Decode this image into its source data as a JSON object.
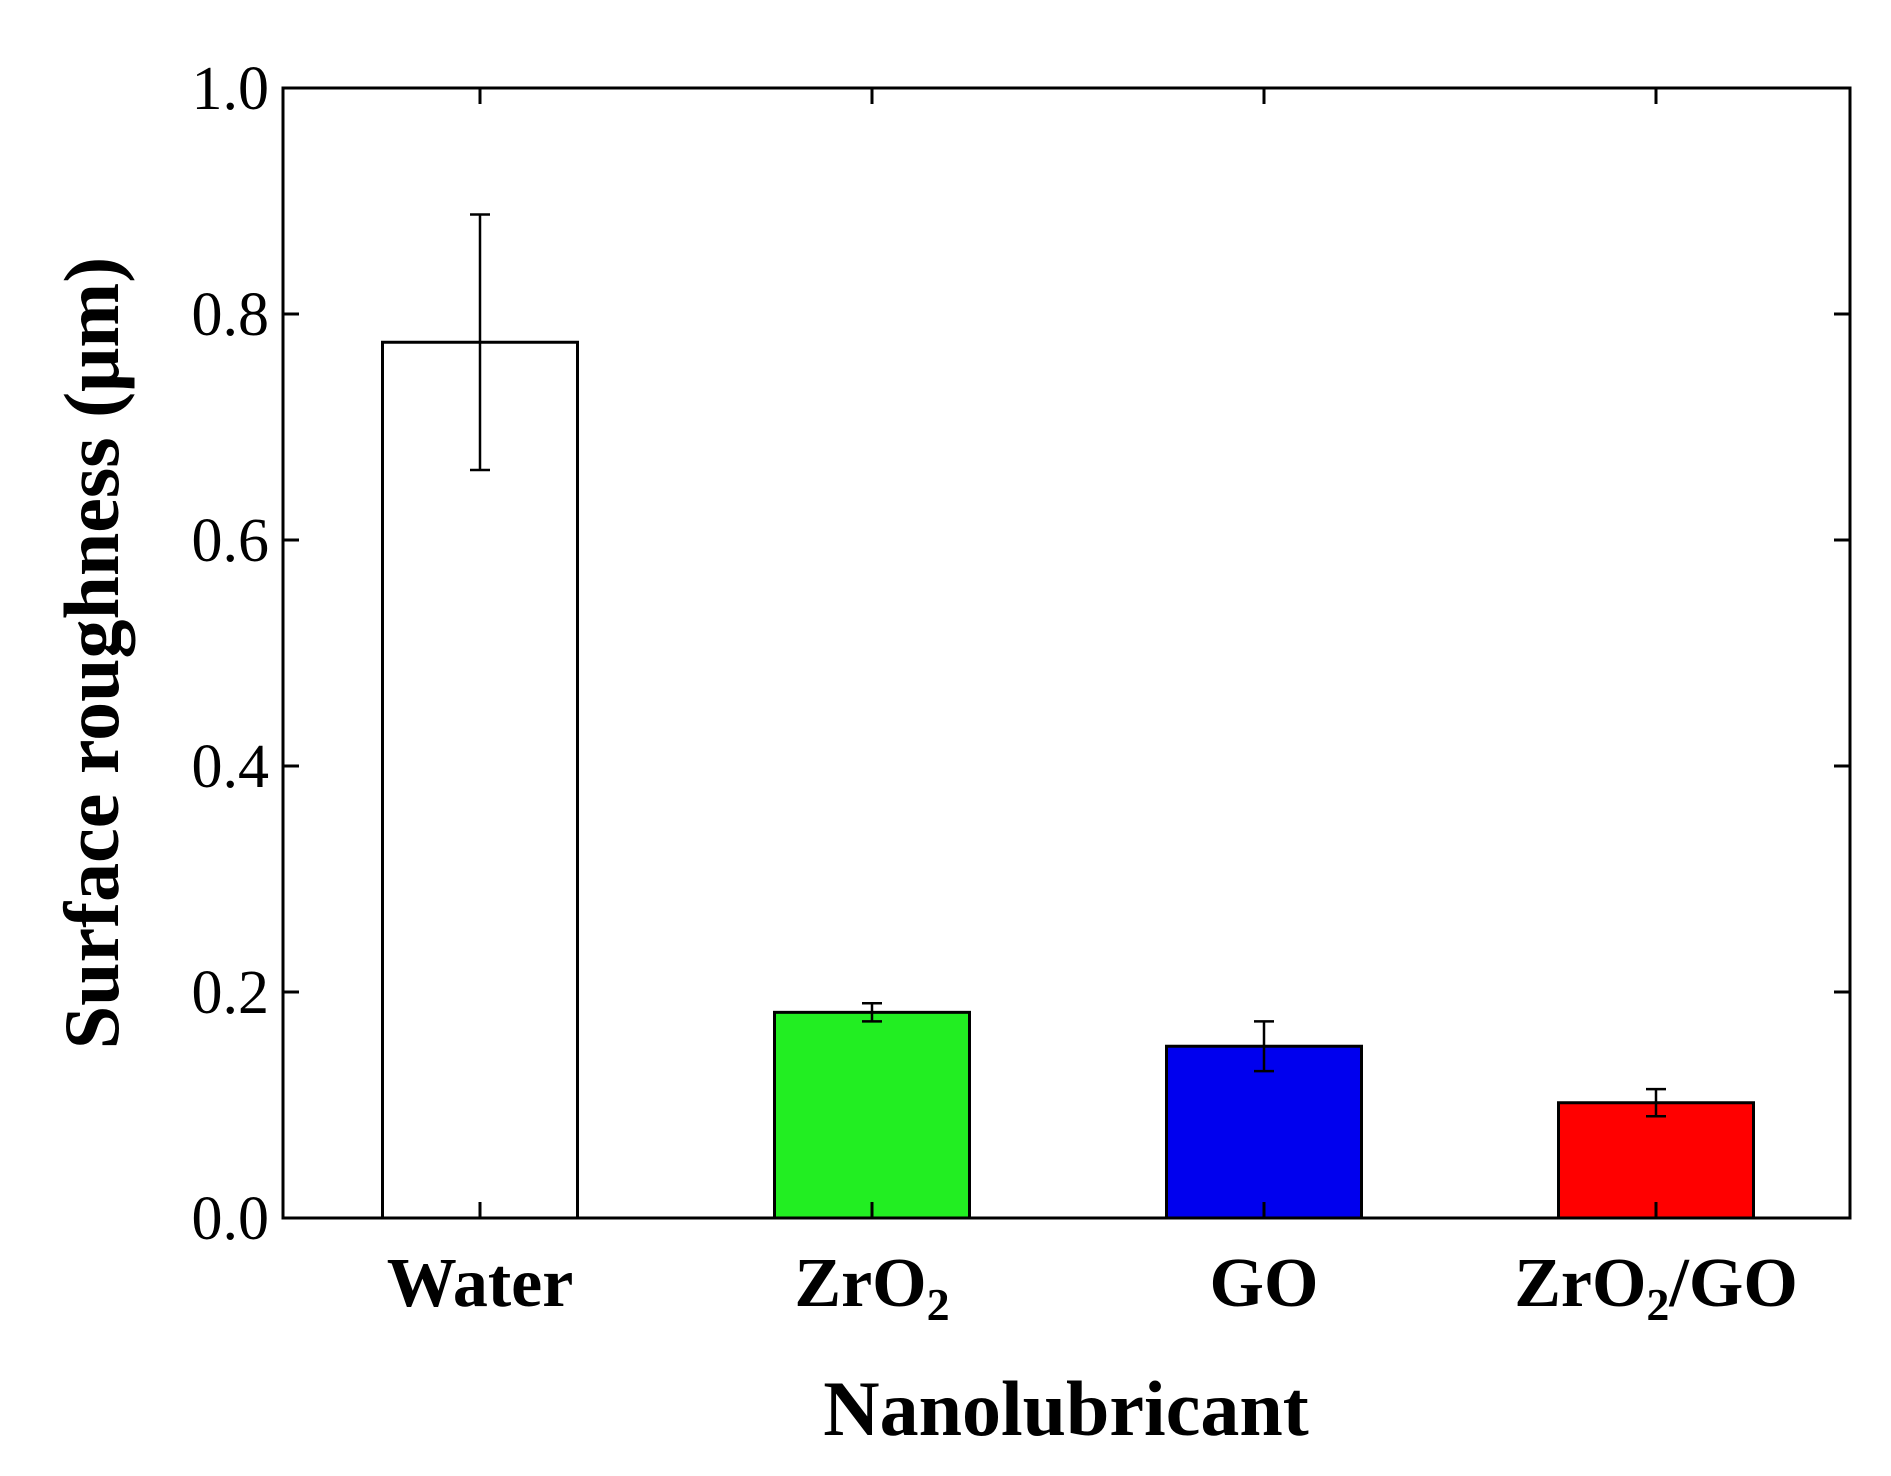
{
  "chart_data": {
    "type": "bar",
    "title": "",
    "xlabel": "Nanolubricant",
    "ylabel": "Surface roughness (μm)",
    "ylim": [
      0.0,
      1.0
    ],
    "yticks": [
      "0.0",
      "0.2",
      "0.4",
      "0.6",
      "0.8",
      "1.0"
    ],
    "grid": false,
    "categories": [
      {
        "main": "Water",
        "sub": "",
        "tail": ""
      },
      {
        "main": "ZrO",
        "sub": "2",
        "tail": ""
      },
      {
        "main": "GO",
        "sub": "",
        "tail": ""
      },
      {
        "main": "ZrO",
        "sub": "2",
        "tail": "/GO"
      }
    ],
    "values": [
      0.775,
      0.182,
      0.152,
      0.102
    ],
    "errors": [
      0.113,
      0.008,
      0.022,
      0.012
    ],
    "colors": [
      "#ffffff",
      "#22ee22",
      "#0000ee",
      "#ff0000"
    ]
  }
}
